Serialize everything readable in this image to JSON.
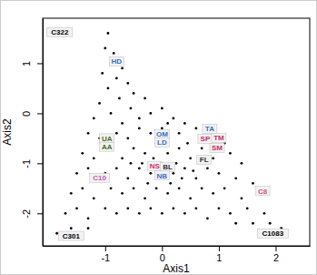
{
  "chart_data": {
    "type": "scatter",
    "x_label": "Axis1",
    "y_label": "Axis2",
    "xlim": [
      -2.1,
      2.6
    ],
    "ylim": [
      -2.65,
      1.9
    ],
    "xticks": [
      -1,
      0,
      1,
      2
    ],
    "yticks": [
      -2,
      -1,
      0,
      1
    ],
    "color": "#000000",
    "marker": "circle",
    "x": [
      -0.95,
      -1.0,
      -0.85,
      -0.9,
      -0.7,
      -1.05,
      -0.8,
      -0.6,
      -0.95,
      -0.5,
      -0.75,
      -1.1,
      -0.3,
      -0.55,
      -0.2,
      0.0,
      -0.9,
      -1.2,
      0.2,
      0.4,
      -0.4,
      0.1,
      -0.7,
      -1.3,
      -1.1,
      -0.8,
      -0.6,
      -0.4,
      -0.2,
      0.0,
      0.3,
      0.6,
      0.8,
      1.1,
      -1.4,
      -1.2,
      -0.9,
      -0.7,
      -0.5,
      -0.3,
      -0.1,
      0.1,
      0.3,
      0.5,
      0.7,
      0.9,
      1.2,
      1.4,
      -1.5,
      -1.3,
      -1.0,
      -0.8,
      -0.6,
      -0.4,
      -0.2,
      0.0,
      0.2,
      0.4,
      0.6,
      0.8,
      1.0,
      1.3,
      1.6,
      -1.6,
      -1.4,
      -1.2,
      -0.9,
      -0.7,
      -0.5,
      -0.3,
      -0.1,
      0.1,
      0.3,
      0.5,
      0.7,
      0.9,
      1.1,
      1.4,
      1.7,
      -1.7,
      -1.5,
      -1.3,
      -1.0,
      -0.8,
      -0.6,
      -0.4,
      -0.2,
      0.0,
      0.2,
      0.4,
      0.6,
      0.8,
      1.0,
      1.2,
      1.5,
      1.8,
      -1.85,
      -1.6,
      -1.3,
      1.3,
      1.6,
      1.9,
      2.1,
      -0.15,
      0.05,
      0.25,
      -0.35,
      0.45,
      0.15,
      -0.25,
      0.55,
      -0.55,
      0.35
    ],
    "y": [
      1.6,
      1.3,
      1.2,
      1.0,
      0.9,
      0.8,
      0.7,
      0.6,
      0.5,
      0.4,
      0.3,
      0.2,
      0.3,
      0.1,
      0.0,
      0.1,
      0.0,
      -0.1,
      -0.1,
      -0.2,
      -0.1,
      -0.2,
      -0.2,
      -0.4,
      -0.5,
      -0.4,
      -0.5,
      -0.3,
      -0.4,
      -0.3,
      -0.4,
      -0.3,
      -0.5,
      -0.6,
      -0.8,
      -0.9,
      -0.7,
      -0.9,
      -0.7,
      -0.8,
      -0.6,
      -0.8,
      -0.7,
      -0.9,
      -0.7,
      -0.9,
      -0.8,
      -1.0,
      -1.2,
      -1.1,
      -1.2,
      -1.1,
      -1.3,
      -1.1,
      -1.2,
      -1.0,
      -1.2,
      -1.1,
      -1.3,
      -1.1,
      -1.2,
      -1.3,
      -1.4,
      -1.6,
      -1.5,
      -1.7,
      -1.5,
      -1.6,
      -1.5,
      -1.7,
      -1.5,
      -1.6,
      -1.5,
      -1.7,
      -1.5,
      -1.6,
      -1.5,
      -1.7,
      -1.6,
      -2.0,
      -1.9,
      -2.1,
      -1.9,
      -2.0,
      -1.9,
      -2.0,
      -1.9,
      -2.0,
      -1.9,
      -2.0,
      -1.9,
      -2.1,
      -1.9,
      -2.0,
      -1.9,
      -2.0,
      -2.4,
      -2.3,
      -2.3,
      -2.2,
      -2.2,
      -2.2,
      -2.3,
      -0.9,
      -0.5,
      -1.0,
      -1.0,
      -0.6,
      -1.4,
      -1.4,
      -1.15,
      -1.0,
      -1.3
    ],
    "labeled_points": {
      "labels": [
        "C322",
        "HD",
        "UA",
        "AA",
        "OM",
        "LD",
        "TA",
        "SP",
        "TM",
        "SM",
        "FL",
        "NS",
        "BL",
        "NB",
        "C10",
        "C8",
        "C301",
        "C1083"
      ],
      "x": [
        -1.8,
        -0.8,
        -0.97,
        -0.97,
        0.0,
        0.0,
        0.84,
        0.76,
        1.0,
        0.97,
        0.74,
        -0.13,
        0.1,
        0.0,
        -1.1,
        1.77,
        -1.6,
        1.95
      ],
      "y": [
        1.62,
        1.04,
        -0.5,
        -0.67,
        -0.42,
        -0.58,
        -0.31,
        -0.51,
        -0.49,
        -0.69,
        -0.93,
        -1.05,
        -1.07,
        -1.24,
        -1.29,
        -1.55,
        -2.45,
        -2.4
      ],
      "colors": [
        "#000000",
        "#3a6fc4",
        "#4f6b2a",
        "#4f6b2a",
        "#3a6fc4",
        "#3a6fc4",
        "#3a6fc4",
        "#c0306a",
        "#c0306a",
        "#c0306a",
        "#333333",
        "#c0306a",
        "#333333",
        "#3a6fc4",
        "#c060b0",
        "#d05080",
        "#000000",
        "#000000"
      ]
    }
  }
}
